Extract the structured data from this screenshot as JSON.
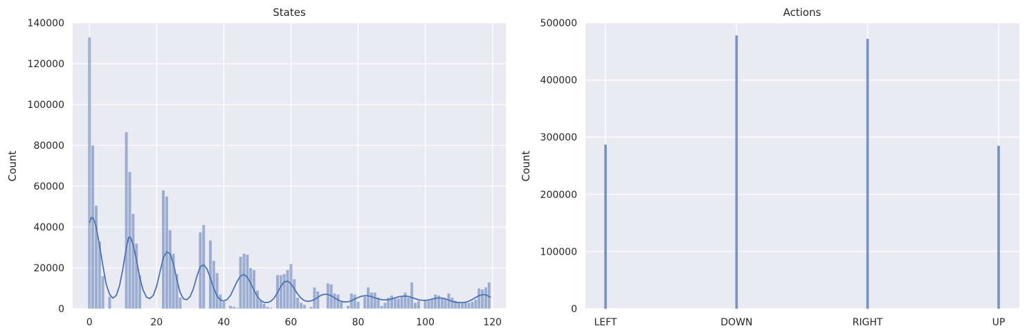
{
  "chart_data": [
    {
      "type": "histogram",
      "title": "States",
      "xlabel": "",
      "ylabel": "Count",
      "xlim": [
        -5,
        124
      ],
      "ylim": [
        0,
        140000
      ],
      "xticks": [
        0,
        20,
        40,
        60,
        80,
        100,
        120
      ],
      "yticks": [
        0,
        20000,
        40000,
        60000,
        80000,
        100000,
        120000,
        140000
      ],
      "xtick_labels": [
        "0",
        "20",
        "40",
        "60",
        "80",
        "100",
        "120"
      ],
      "ytick_labels": [
        "0",
        "20000",
        "40000",
        "60000",
        "80000",
        "100000",
        "120000",
        "140000"
      ],
      "grid": true,
      "bar_color": "#4c72b0",
      "kde": true,
      "bins": [
        {
          "x": 0,
          "count": 133000
        },
        {
          "x": 1,
          "count": 80000
        },
        {
          "x": 2,
          "count": 50500
        },
        {
          "x": 3,
          "count": 33000
        },
        {
          "x": 4,
          "count": 16000
        },
        {
          "x": 5,
          "count": 0
        },
        {
          "x": 6,
          "count": 6000
        },
        {
          "x": 7,
          "count": 0
        },
        {
          "x": 8,
          "count": 0
        },
        {
          "x": 9,
          "count": 0
        },
        {
          "x": 10,
          "count": 0
        },
        {
          "x": 11,
          "count": 86500
        },
        {
          "x": 12,
          "count": 67000
        },
        {
          "x": 13,
          "count": 46500
        },
        {
          "x": 14,
          "count": 32000
        },
        {
          "x": 15,
          "count": 16500
        },
        {
          "x": 16,
          "count": 0
        },
        {
          "x": 17,
          "count": 0
        },
        {
          "x": 18,
          "count": 0
        },
        {
          "x": 19,
          "count": 0
        },
        {
          "x": 20,
          "count": 0
        },
        {
          "x": 21,
          "count": 0
        },
        {
          "x": 22,
          "count": 58000
        },
        {
          "x": 23,
          "count": 55000
        },
        {
          "x": 24,
          "count": 38500
        },
        {
          "x": 25,
          "count": 27000
        },
        {
          "x": 26,
          "count": 17000
        },
        {
          "x": 27,
          "count": 5500
        },
        {
          "x": 28,
          "count": 0
        },
        {
          "x": 29,
          "count": 0
        },
        {
          "x": 30,
          "count": 0
        },
        {
          "x": 31,
          "count": 0
        },
        {
          "x": 32,
          "count": 0
        },
        {
          "x": 33,
          "count": 37500
        },
        {
          "x": 34,
          "count": 41000
        },
        {
          "x": 35,
          "count": 0
        },
        {
          "x": 36,
          "count": 33500
        },
        {
          "x": 37,
          "count": 23500
        },
        {
          "x": 38,
          "count": 17500
        },
        {
          "x": 39,
          "count": 7000
        },
        {
          "x": 40,
          "count": 3500
        },
        {
          "x": 41,
          "count": 0
        },
        {
          "x": 42,
          "count": 1500
        },
        {
          "x": 43,
          "count": 1000
        },
        {
          "x": 44,
          "count": 500
        },
        {
          "x": 45,
          "count": 25500
        },
        {
          "x": 46,
          "count": 27000
        },
        {
          "x": 47,
          "count": 26500
        },
        {
          "x": 48,
          "count": 20000
        },
        {
          "x": 49,
          "count": 19000
        },
        {
          "x": 50,
          "count": 9000
        },
        {
          "x": 51,
          "count": 4000
        },
        {
          "x": 52,
          "count": 2500
        },
        {
          "x": 53,
          "count": 1000
        },
        {
          "x": 54,
          "count": 500
        },
        {
          "x": 55,
          "count": 0
        },
        {
          "x": 56,
          "count": 16500
        },
        {
          "x": 57,
          "count": 16500
        },
        {
          "x": 58,
          "count": 17000
        },
        {
          "x": 59,
          "count": 19000
        },
        {
          "x": 60,
          "count": 22000
        },
        {
          "x": 61,
          "count": 14500
        },
        {
          "x": 62,
          "count": 5500
        },
        {
          "x": 63,
          "count": 3000
        },
        {
          "x": 64,
          "count": 2000
        },
        {
          "x": 65,
          "count": 0
        },
        {
          "x": 66,
          "count": 1000
        },
        {
          "x": 67,
          "count": 10500
        },
        {
          "x": 68,
          "count": 8500
        },
        {
          "x": 69,
          "count": 0
        },
        {
          "x": 70,
          "count": 0
        },
        {
          "x": 71,
          "count": 12500
        },
        {
          "x": 72,
          "count": 12000
        },
        {
          "x": 73,
          "count": 7500
        },
        {
          "x": 74,
          "count": 7000
        },
        {
          "x": 75,
          "count": 3500
        },
        {
          "x": 76,
          "count": 0
        },
        {
          "x": 77,
          "count": 1500
        },
        {
          "x": 78,
          "count": 7500
        },
        {
          "x": 79,
          "count": 7000
        },
        {
          "x": 80,
          "count": 3500
        },
        {
          "x": 81,
          "count": 0
        },
        {
          "x": 82,
          "count": 6000
        },
        {
          "x": 83,
          "count": 10500
        },
        {
          "x": 84,
          "count": 8000
        },
        {
          "x": 85,
          "count": 8000
        },
        {
          "x": 86,
          "count": 5500
        },
        {
          "x": 87,
          "count": 1500
        },
        {
          "x": 88,
          "count": 3000
        },
        {
          "x": 89,
          "count": 5500
        },
        {
          "x": 90,
          "count": 6500
        },
        {
          "x": 91,
          "count": 5000
        },
        {
          "x": 92,
          "count": 5000
        },
        {
          "x": 93,
          "count": 6000
        },
        {
          "x": 94,
          "count": 8000
        },
        {
          "x": 95,
          "count": 5500
        },
        {
          "x": 96,
          "count": 13000
        },
        {
          "x": 97,
          "count": 3000
        },
        {
          "x": 98,
          "count": 4000
        },
        {
          "x": 99,
          "count": 0
        },
        {
          "x": 100,
          "count": 4500
        },
        {
          "x": 101,
          "count": 4500
        },
        {
          "x": 102,
          "count": 4500
        },
        {
          "x": 103,
          "count": 7000
        },
        {
          "x": 104,
          "count": 6500
        },
        {
          "x": 105,
          "count": 5000
        },
        {
          "x": 106,
          "count": 5000
        },
        {
          "x": 107,
          "count": 7500
        },
        {
          "x": 108,
          "count": 5500
        },
        {
          "x": 109,
          "count": 4000
        },
        {
          "x": 110,
          "count": 3500
        },
        {
          "x": 111,
          "count": 3000
        },
        {
          "x": 112,
          "count": 3500
        },
        {
          "x": 113,
          "count": 3000
        },
        {
          "x": 114,
          "count": 3500
        },
        {
          "x": 115,
          "count": 4500
        },
        {
          "x": 116,
          "count": 10000
        },
        {
          "x": 117,
          "count": 9500
        },
        {
          "x": 118,
          "count": 10500
        },
        {
          "x": 119,
          "count": 13000
        }
      ],
      "kde_points": [
        [
          0,
          42000
        ],
        [
          0.5,
          44500
        ],
        [
          1,
          44500
        ],
        [
          1.5,
          43000
        ],
        [
          2,
          40000
        ],
        [
          3,
          31000
        ],
        [
          4,
          21000
        ],
        [
          5,
          12000
        ],
        [
          6,
          7000
        ],
        [
          7,
          5200
        ],
        [
          8,
          6500
        ],
        [
          9,
          11500
        ],
        [
          10,
          20000
        ],
        [
          11,
          30000
        ],
        [
          11.7,
          35000
        ],
        [
          12.2,
          35000
        ],
        [
          13,
          31500
        ],
        [
          14,
          24000
        ],
        [
          15,
          15000
        ],
        [
          16,
          9000
        ],
        [
          17,
          5600
        ],
        [
          18,
          5000
        ],
        [
          19,
          6500
        ],
        [
          20,
          11000
        ],
        [
          21,
          18000
        ],
        [
          22,
          25000
        ],
        [
          23,
          27800
        ],
        [
          24,
          27000
        ],
        [
          25,
          22000
        ],
        [
          26,
          14500
        ],
        [
          27,
          8000
        ],
        [
          28,
          4800
        ],
        [
          29,
          4400
        ],
        [
          30,
          6000
        ],
        [
          31,
          10000
        ],
        [
          32,
          16000
        ],
        [
          33,
          20500
        ],
        [
          34,
          21500
        ],
        [
          35,
          19500
        ],
        [
          36,
          15000
        ],
        [
          37,
          10000
        ],
        [
          38,
          6200
        ],
        [
          39,
          4200
        ],
        [
          40,
          3800
        ],
        [
          41,
          4500
        ],
        [
          42,
          6500
        ],
        [
          43,
          10000
        ],
        [
          44,
          13500
        ],
        [
          45,
          16000
        ],
        [
          46,
          16800
        ],
        [
          47,
          15500
        ],
        [
          48,
          12500
        ],
        [
          49,
          9000
        ],
        [
          50,
          6000
        ],
        [
          51,
          4000
        ],
        [
          52,
          3100
        ],
        [
          53,
          3000
        ],
        [
          54,
          3600
        ],
        [
          55,
          5200
        ],
        [
          56,
          8000
        ],
        [
          57,
          11000
        ],
        [
          58,
          13200
        ],
        [
          59,
          13500
        ],
        [
          60,
          12200
        ],
        [
          61,
          9800
        ],
        [
          62,
          7200
        ],
        [
          63,
          5200
        ],
        [
          64,
          4000
        ],
        [
          65,
          3600
        ],
        [
          66,
          3800
        ],
        [
          67,
          4500
        ],
        [
          68,
          5600
        ],
        [
          69,
          6600
        ],
        [
          70,
          7100
        ],
        [
          71,
          7000
        ],
        [
          72,
          6300
        ],
        [
          73,
          5300
        ],
        [
          74,
          4300
        ],
        [
          75,
          3600
        ],
        [
          76,
          3300
        ],
        [
          77,
          3400
        ],
        [
          78,
          3900
        ],
        [
          79,
          4700
        ],
        [
          80,
          5500
        ],
        [
          81,
          6100
        ],
        [
          82,
          6400
        ],
        [
          83,
          6300
        ],
        [
          84,
          5900
        ],
        [
          85,
          5300
        ],
        [
          86,
          4800
        ],
        [
          87,
          4400
        ],
        [
          88,
          4300
        ],
        [
          89,
          4400
        ],
        [
          90,
          4800
        ],
        [
          91,
          5300
        ],
        [
          92,
          5800
        ],
        [
          93,
          6100
        ],
        [
          94,
          6200
        ],
        [
          95,
          6000
        ],
        [
          96,
          5500
        ],
        [
          97,
          4900
        ],
        [
          98,
          4400
        ],
        [
          99,
          4100
        ],
        [
          100,
          4100
        ],
        [
          101,
          4300
        ],
        [
          102,
          4700
        ],
        [
          103,
          5100
        ],
        [
          104,
          5300
        ],
        [
          105,
          5200
        ],
        [
          106,
          4800
        ],
        [
          107,
          4200
        ],
        [
          108,
          3600
        ],
        [
          109,
          3200
        ],
        [
          110,
          3000
        ],
        [
          111,
          3000
        ],
        [
          112,
          3200
        ],
        [
          113,
          3700
        ],
        [
          114,
          4500
        ],
        [
          115,
          5500
        ],
        [
          116,
          6400
        ],
        [
          117,
          6900
        ],
        [
          118,
          6800
        ],
        [
          119,
          6000
        ],
        [
          119.5,
          5500
        ]
      ]
    },
    {
      "type": "histogram",
      "title": "Actions",
      "xlabel": "",
      "ylabel": "Count",
      "ylim": [
        0,
        500000
      ],
      "yticks": [
        0,
        100000,
        200000,
        300000,
        400000,
        500000
      ],
      "ytick_labels": [
        "0",
        "100000",
        "200000",
        "300000",
        "400000",
        "500000"
      ],
      "grid": true,
      "bar_color": "#4c72b0",
      "categories": [
        "LEFT",
        "DOWN",
        "RIGHT",
        "UP"
      ],
      "values": [
        287000,
        478000,
        472000,
        285000
      ]
    }
  ]
}
